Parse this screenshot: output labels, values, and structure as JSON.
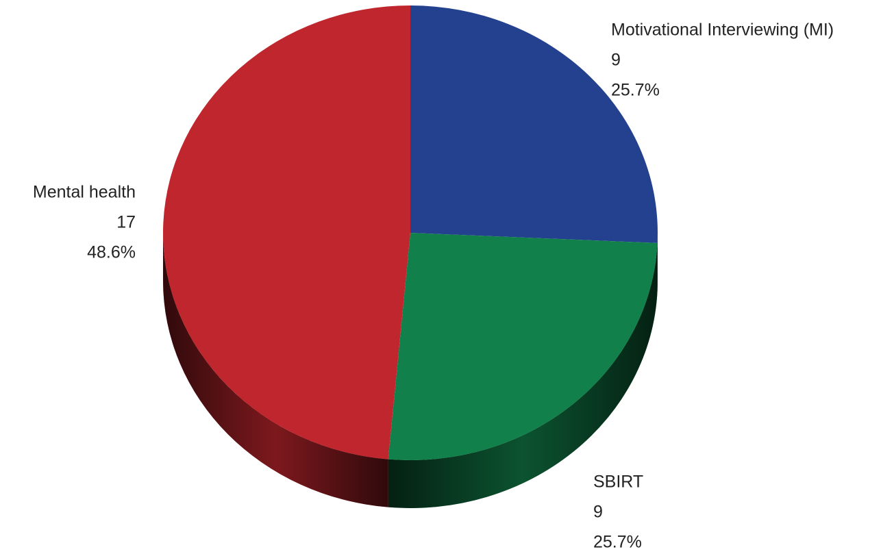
{
  "chart_data": {
    "type": "pie",
    "categories": [
      "Motivational Interviewing (MI)",
      "SBIRT",
      "Mental health"
    ],
    "values": [
      9,
      9,
      17
    ],
    "percent_labels": [
      "25.7%",
      "25.7%",
      "48.6%"
    ],
    "colors": [
      "#24418f",
      "#12804a",
      "#c0262d"
    ]
  }
}
